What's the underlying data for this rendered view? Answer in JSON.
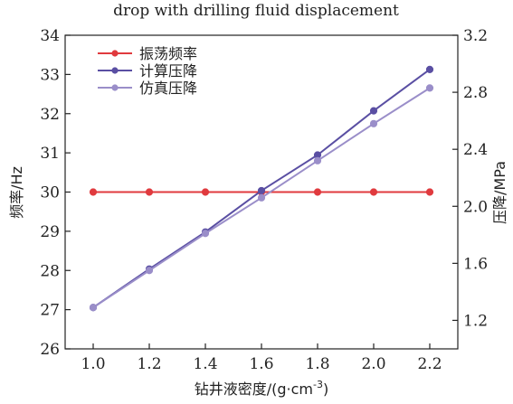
{
  "chart_data": {
    "type": "line",
    "title": "drop with drilling fluid displacement",
    "xlabel": "钻井液密度/(g·cm",
    "xlabel_sup": "-3",
    "xlabel_end": ")",
    "ylabel_left": "频率/Hz",
    "ylabel_right": "压降/MPa",
    "x": [
      1.0,
      1.2,
      1.4,
      1.6,
      1.8,
      2.0,
      2.2
    ],
    "xlim": [
      0.9,
      2.3
    ],
    "x_ticks": [
      "1.0",
      "1.2",
      "1.4",
      "1.6",
      "1.8",
      "2.0",
      "2.2"
    ],
    "ylim_left": [
      26,
      34
    ],
    "y_ticks_left": [
      "26",
      "27",
      "28",
      "29",
      "30",
      "31",
      "32",
      "33",
      "34"
    ],
    "ylim_right": [
      1.0,
      3.2
    ],
    "y_ticks_right": [
      "1.2",
      "1.6",
      "2.0",
      "2.4",
      "2.8",
      "3.2"
    ],
    "grid": false,
    "legend_position": "top-left",
    "series": [
      {
        "name": "振荡频率",
        "axis": "left",
        "color": "#e03a3e",
        "values": [
          30,
          30,
          30,
          30,
          30,
          30,
          30
        ]
      },
      {
        "name": "计算压降",
        "axis": "right",
        "color": "#5a4fa3",
        "values": [
          1.29,
          1.56,
          1.82,
          2.11,
          2.36,
          2.67,
          2.96
        ]
      },
      {
        "name": "仿真压降",
        "axis": "right",
        "color": "#9a8ec9",
        "values": [
          1.29,
          1.55,
          1.81,
          2.06,
          2.32,
          2.58,
          2.83
        ]
      }
    ]
  }
}
